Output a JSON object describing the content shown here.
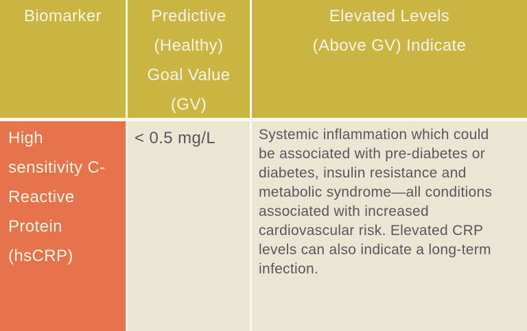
{
  "table": {
    "header": {
      "columns": [
        {
          "name": "biomarker",
          "lines": [
            "Biomarker"
          ]
        },
        {
          "name": "predictive-goal-value",
          "lines": [
            "Predictive",
            "(Healthy)",
            "Goal Value",
            "(GV)"
          ]
        },
        {
          "name": "elevated-levels",
          "lines": [
            "Elevated Levels",
            "(Above GV) Indicate"
          ]
        }
      ]
    },
    "rows": [
      {
        "biomarker": "High sensitivity C-Reactive Protein (hsCRP)",
        "goal_value": "< 0.5 mg/L",
        "elevated_indicates": "Systemic inflammation which could be associated with pre-diabetes or diabetes, insulin resistance and metabolic syndrome—all conditions associated with increased cardiovascular risk. Elevated CRP levels can also indicate a long-term infection."
      }
    ]
  },
  "colors": {
    "header_bg": "#CAB543",
    "biomarker_row_bg": "#E6734B",
    "cell_bg": "#EBE5D4",
    "divider": "#FBF8EF",
    "header_text": "#F7F4E8",
    "body_text": "#56575C"
  }
}
